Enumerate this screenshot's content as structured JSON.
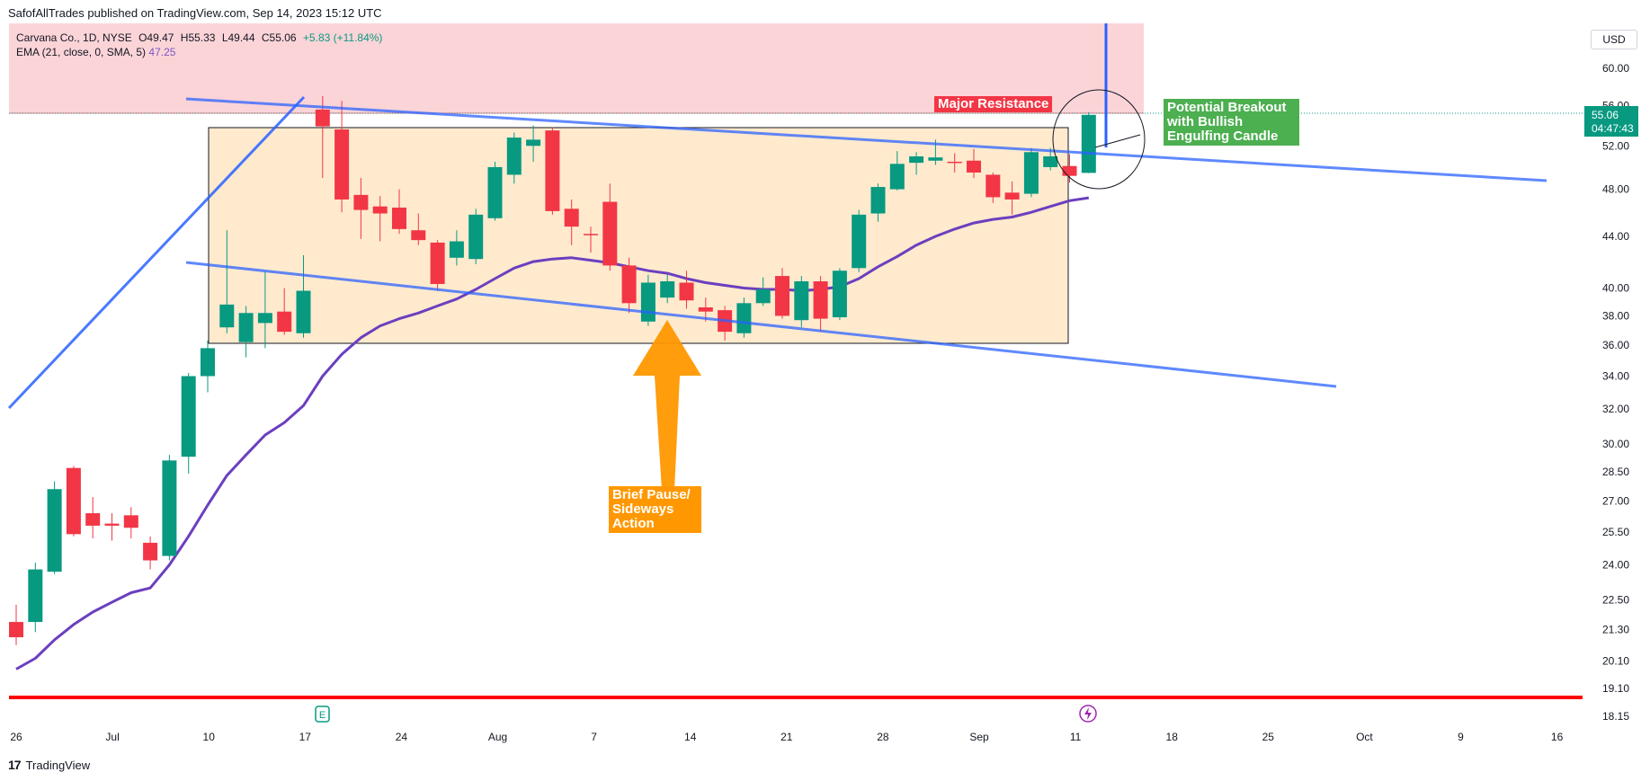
{
  "publish": {
    "text": "SafofAllTrades published on TradingView.com, Sep 14, 2023 15:12 UTC"
  },
  "legend": {
    "symbol": "Carvana Co., 1D, NYSE",
    "open": "O49.47",
    "high": "H55.33",
    "low": "L49.44",
    "close": "C55.06",
    "change": "+5.83 (+11.84%)",
    "ema_label": "EMA (21, close, 0, SMA, 5)",
    "ema_value": "47.25"
  },
  "currency": "USD",
  "last_price": {
    "price": "55.06",
    "countdown": "04:47:43"
  },
  "annotations": {
    "resistance": "Major Resistance",
    "breakout": [
      "Potential Breakout",
      "with Bullish",
      "Engulfing Candle"
    ],
    "pause": [
      "Brief Pause/",
      "Sideways",
      "Action"
    ]
  },
  "events": {
    "earnings_icon": "E",
    "split_icon": "lightning-icon"
  },
  "footer": {
    "brand": "TradingView"
  },
  "colors": {
    "up": "#089981",
    "down": "#f23645",
    "ema": "#6b3fbf",
    "trend": "#2962ff",
    "support": "#ff0000",
    "resistance_zone": "#f9c6cb",
    "range_box": "#ffe5c2",
    "breakout_label": "#4caf50",
    "pause_label": "#ff9800"
  },
  "chart_data": {
    "type": "candlestick",
    "symbol": "Carvana Co., 1D, NYSE",
    "y_ticks": [
      18.15,
      19.1,
      20.1,
      21.3,
      22.5,
      24.0,
      25.5,
      27.0,
      28.5,
      30.0,
      32.0,
      34.0,
      36.0,
      38.0,
      40.0,
      44.0,
      48.0,
      52.0,
      56.0,
      60.0
    ],
    "ylim": [
      17.8,
      64
    ],
    "y_scale": "log",
    "x_ticks": [
      "26",
      "Jul",
      "10",
      "17",
      "24",
      "Aug",
      "7",
      "14",
      "21",
      "28",
      "Sep",
      "11",
      "18",
      "25",
      "Oct",
      "9",
      "16"
    ],
    "candles": [
      {
        "date": "2023-06-26",
        "o": 21.6,
        "h": 22.3,
        "l": 20.7,
        "c": 21.0
      },
      {
        "date": "2023-06-27",
        "o": 21.6,
        "h": 24.1,
        "l": 21.2,
        "c": 23.8
      },
      {
        "date": "2023-06-28",
        "o": 23.7,
        "h": 28.0,
        "l": 23.6,
        "c": 27.6
      },
      {
        "date": "2023-06-29",
        "o": 28.7,
        "h": 28.8,
        "l": 25.3,
        "c": 25.4
      },
      {
        "date": "2023-06-30",
        "o": 26.4,
        "h": 27.2,
        "l": 25.2,
        "c": 25.8
      },
      {
        "date": "2023-07-03",
        "o": 25.9,
        "h": 26.4,
        "l": 25.1,
        "c": 25.8
      },
      {
        "date": "2023-07-05",
        "o": 26.3,
        "h": 26.7,
        "l": 25.2,
        "c": 25.7
      },
      {
        "date": "2023-07-06",
        "o": 25.0,
        "h": 25.3,
        "l": 23.8,
        "c": 24.2
      },
      {
        "date": "2023-07-07",
        "o": 24.4,
        "h": 29.4,
        "l": 24.2,
        "c": 29.1
      },
      {
        "date": "2023-07-10",
        "o": 29.3,
        "h": 34.2,
        "l": 28.4,
        "c": 34.0
      },
      {
        "date": "2023-07-11",
        "o": 34.0,
        "h": 36.3,
        "l": 33.0,
        "c": 35.8
      },
      {
        "date": "2023-07-12",
        "o": 37.2,
        "h": 44.5,
        "l": 36.8,
        "c": 38.8
      },
      {
        "date": "2023-07-13",
        "o": 36.2,
        "h": 38.7,
        "l": 35.2,
        "c": 38.2
      },
      {
        "date": "2023-07-14",
        "o": 37.5,
        "h": 41.2,
        "l": 35.8,
        "c": 38.2
      },
      {
        "date": "2023-07-17",
        "o": 38.3,
        "h": 40.0,
        "l": 36.7,
        "c": 36.9
      },
      {
        "date": "2023-07-18",
        "o": 36.8,
        "h": 42.5,
        "l": 36.5,
        "c": 39.8
      },
      {
        "date": "2023-07-19",
        "o": 55.6,
        "h": 57.0,
        "l": 49.0,
        "c": 53.9
      },
      {
        "date": "2023-07-20",
        "o": 53.6,
        "h": 56.5,
        "l": 46.0,
        "c": 47.1
      },
      {
        "date": "2023-07-21",
        "o": 47.5,
        "h": 49.0,
        "l": 43.8,
        "c": 46.2
      },
      {
        "date": "2023-07-24",
        "o": 46.5,
        "h": 47.4,
        "l": 43.6,
        "c": 45.9
      },
      {
        "date": "2023-07-25",
        "o": 46.4,
        "h": 48.0,
        "l": 44.2,
        "c": 44.6
      },
      {
        "date": "2023-07-26",
        "o": 44.5,
        "h": 45.9,
        "l": 43.3,
        "c": 43.7
      },
      {
        "date": "2023-07-27",
        "o": 43.5,
        "h": 43.7,
        "l": 39.8,
        "c": 40.3
      },
      {
        "date": "2023-07-28",
        "o": 42.3,
        "h": 44.5,
        "l": 41.7,
        "c": 43.6
      },
      {
        "date": "2023-07-31",
        "o": 42.2,
        "h": 46.3,
        "l": 41.8,
        "c": 45.8
      },
      {
        "date": "2023-08-01",
        "o": 45.5,
        "h": 50.5,
        "l": 45.3,
        "c": 50.0
      },
      {
        "date": "2023-08-02",
        "o": 49.3,
        "h": 53.3,
        "l": 48.5,
        "c": 52.8
      },
      {
        "date": "2023-08-03",
        "o": 52.0,
        "h": 54.0,
        "l": 50.5,
        "c": 52.6
      },
      {
        "date": "2023-08-04",
        "o": 53.5,
        "h": 53.8,
        "l": 45.8,
        "c": 46.1
      },
      {
        "date": "2023-08-07",
        "o": 46.3,
        "h": 47.1,
        "l": 43.3,
        "c": 44.8
      },
      {
        "date": "2023-08-08",
        "o": 44.2,
        "h": 44.8,
        "l": 42.7,
        "c": 44.1
      },
      {
        "date": "2023-08-09",
        "o": 46.9,
        "h": 48.5,
        "l": 41.3,
        "c": 41.7
      },
      {
        "date": "2023-08-10",
        "o": 41.7,
        "h": 42.3,
        "l": 38.2,
        "c": 38.9
      },
      {
        "date": "2023-08-11",
        "o": 37.6,
        "h": 41.0,
        "l": 37.3,
        "c": 40.4
      },
      {
        "date": "2023-08-14",
        "o": 39.3,
        "h": 41.0,
        "l": 38.9,
        "c": 40.5
      },
      {
        "date": "2023-08-15",
        "o": 40.4,
        "h": 41.3,
        "l": 38.5,
        "c": 39.1
      },
      {
        "date": "2023-08-16",
        "o": 38.6,
        "h": 39.3,
        "l": 37.6,
        "c": 38.3
      },
      {
        "date": "2023-08-17",
        "o": 38.4,
        "h": 38.7,
        "l": 36.3,
        "c": 36.9
      },
      {
        "date": "2023-08-18",
        "o": 36.8,
        "h": 39.3,
        "l": 36.5,
        "c": 38.9
      },
      {
        "date": "2023-08-21",
        "o": 38.9,
        "h": 40.8,
        "l": 38.7,
        "c": 39.9
      },
      {
        "date": "2023-08-22",
        "o": 40.9,
        "h": 41.5,
        "l": 37.8,
        "c": 38.0
      },
      {
        "date": "2023-08-23",
        "o": 37.7,
        "h": 40.9,
        "l": 37.2,
        "c": 40.5
      },
      {
        "date": "2023-08-24",
        "o": 40.5,
        "h": 40.9,
        "l": 36.9,
        "c": 37.8
      },
      {
        "date": "2023-08-25",
        "o": 37.9,
        "h": 41.5,
        "l": 37.7,
        "c": 41.3
      },
      {
        "date": "2023-08-28",
        "o": 41.5,
        "h": 46.2,
        "l": 41.2,
        "c": 45.8
      },
      {
        "date": "2023-08-29",
        "o": 45.9,
        "h": 48.5,
        "l": 45.2,
        "c": 48.2
      },
      {
        "date": "2023-08-30",
        "o": 48.0,
        "h": 51.5,
        "l": 47.9,
        "c": 50.3
      },
      {
        "date": "2023-08-31",
        "o": 50.4,
        "h": 51.4,
        "l": 49.3,
        "c": 51.0
      },
      {
        "date": "2023-09-01",
        "o": 50.6,
        "h": 52.6,
        "l": 50.2,
        "c": 50.9
      },
      {
        "date": "2023-09-05",
        "o": 50.5,
        "h": 51.3,
        "l": 49.5,
        "c": 50.4
      },
      {
        "date": "2023-09-06",
        "o": 50.6,
        "h": 51.7,
        "l": 49.0,
        "c": 49.5
      },
      {
        "date": "2023-09-07",
        "o": 49.3,
        "h": 49.5,
        "l": 46.8,
        "c": 47.3
      },
      {
        "date": "2023-09-08",
        "o": 47.7,
        "h": 48.7,
        "l": 45.8,
        "c": 47.1
      },
      {
        "date": "2023-09-11",
        "o": 47.6,
        "h": 51.8,
        "l": 47.3,
        "c": 51.4
      },
      {
        "date": "2023-09-12",
        "o": 50.0,
        "h": 51.8,
        "l": 49.7,
        "c": 51.0
      },
      {
        "date": "2023-09-13",
        "o": 50.1,
        "h": 51.2,
        "l": 48.6,
        "c": 49.2
      },
      {
        "date": "2023-09-14",
        "o": 49.47,
        "h": 55.33,
        "l": 49.44,
        "c": 55.06
      }
    ],
    "ema": {
      "name": "EMA (21, close, 0, SMA, 5)",
      "last": 47.25,
      "values": [
        19.8,
        20.2,
        20.9,
        21.5,
        22.0,
        22.4,
        22.8,
        23.0,
        24.0,
        25.3,
        26.8,
        28.3,
        29.4,
        30.5,
        31.2,
        32.2,
        34.0,
        35.4,
        36.5,
        37.3,
        37.8,
        38.2,
        38.7,
        39.2,
        39.9,
        40.7,
        41.5,
        42.0,
        42.2,
        42.3,
        42.1,
        41.9,
        41.6,
        41.3,
        41.1,
        40.7,
        40.4,
        40.2,
        40.0,
        39.9,
        39.9,
        39.8,
        39.9,
        40.1,
        40.7,
        41.6,
        42.4,
        43.3,
        44.0,
        44.6,
        45.1,
        45.4,
        45.6,
        46.0,
        46.5,
        47.0,
        47.25
      ]
    }
  }
}
